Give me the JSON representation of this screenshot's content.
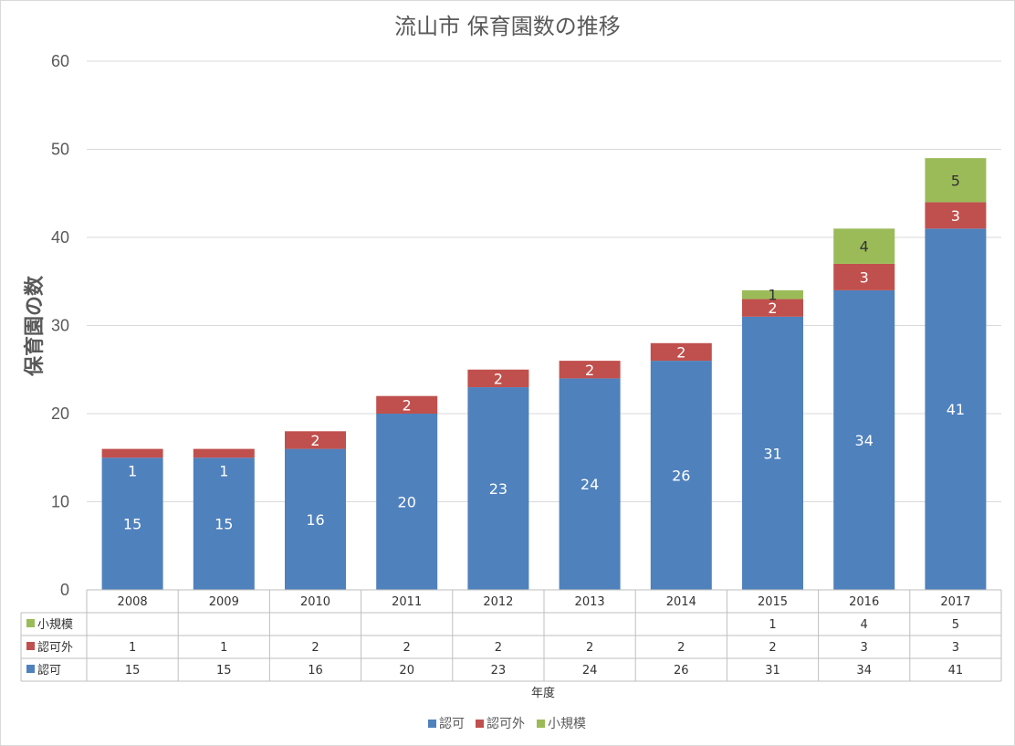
{
  "chart_data": {
    "type": "bar",
    "stacked": true,
    "title": "流山市 保育園数の推移",
    "ylabel": "保育園の数",
    "xlabel": "年度",
    "ylim": [
      0,
      60
    ],
    "yticks": [
      0,
      10,
      20,
      30,
      40,
      50,
      60
    ],
    "grid": true,
    "legend_position": "bottom",
    "data_table": true,
    "categories": [
      "2008",
      "2009",
      "2010",
      "2011",
      "2012",
      "2013",
      "2014",
      "2015",
      "2016",
      "2017"
    ],
    "series": [
      {
        "name": "認可",
        "color": "#4f81bd",
        "label_color": "#ffffff",
        "values": [
          15,
          15,
          16,
          20,
          23,
          24,
          26,
          31,
          34,
          41
        ]
      },
      {
        "name": "認可外",
        "color": "#c0504d",
        "label_color": "#ffffff",
        "values": [
          1,
          1,
          2,
          2,
          2,
          2,
          2,
          2,
          3,
          3
        ]
      },
      {
        "name": "小規模",
        "color": "#9bbb59",
        "label_color": "#333333",
        "values": [
          null,
          null,
          null,
          null,
          null,
          null,
          null,
          1,
          4,
          5
        ]
      }
    ]
  }
}
